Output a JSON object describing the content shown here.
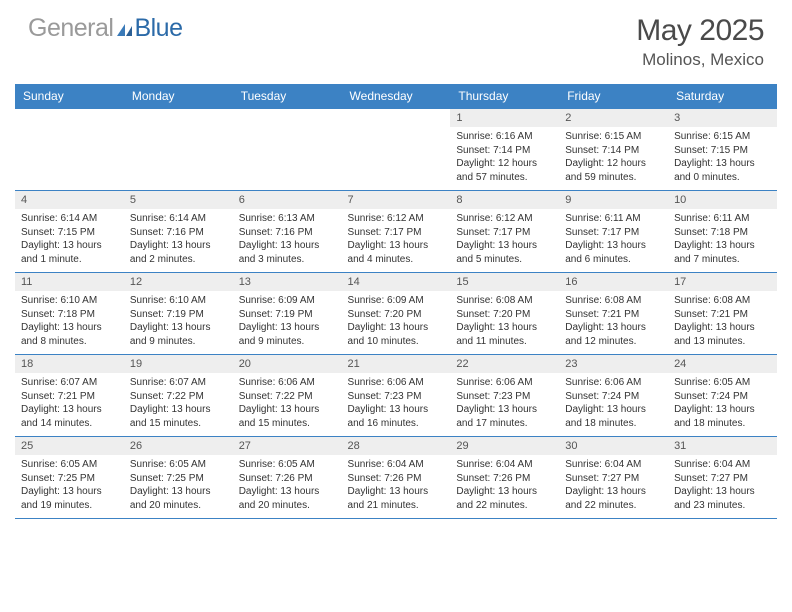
{
  "brand": {
    "part1": "General",
    "part2": "Blue"
  },
  "title": "May 2025",
  "location": "Molinos, Mexico",
  "colors": {
    "header_bg": "#3c82c4",
    "header_text": "#ffffff",
    "daynum_bg": "#eeeeee",
    "text": "#333333",
    "rule": "#3c82c4"
  },
  "daysOfWeek": [
    "Sunday",
    "Monday",
    "Tuesday",
    "Wednesday",
    "Thursday",
    "Friday",
    "Saturday"
  ],
  "weeks": [
    [
      {
        "n": "",
        "sunrise": "",
        "sunset": "",
        "daylight": ""
      },
      {
        "n": "",
        "sunrise": "",
        "sunset": "",
        "daylight": ""
      },
      {
        "n": "",
        "sunrise": "",
        "sunset": "",
        "daylight": ""
      },
      {
        "n": "",
        "sunrise": "",
        "sunset": "",
        "daylight": ""
      },
      {
        "n": "1",
        "sunrise": "Sunrise: 6:16 AM",
        "sunset": "Sunset: 7:14 PM",
        "daylight": "Daylight: 12 hours and 57 minutes."
      },
      {
        "n": "2",
        "sunrise": "Sunrise: 6:15 AM",
        "sunset": "Sunset: 7:14 PM",
        "daylight": "Daylight: 12 hours and 59 minutes."
      },
      {
        "n": "3",
        "sunrise": "Sunrise: 6:15 AM",
        "sunset": "Sunset: 7:15 PM",
        "daylight": "Daylight: 13 hours and 0 minutes."
      }
    ],
    [
      {
        "n": "4",
        "sunrise": "Sunrise: 6:14 AM",
        "sunset": "Sunset: 7:15 PM",
        "daylight": "Daylight: 13 hours and 1 minute."
      },
      {
        "n": "5",
        "sunrise": "Sunrise: 6:14 AM",
        "sunset": "Sunset: 7:16 PM",
        "daylight": "Daylight: 13 hours and 2 minutes."
      },
      {
        "n": "6",
        "sunrise": "Sunrise: 6:13 AM",
        "sunset": "Sunset: 7:16 PM",
        "daylight": "Daylight: 13 hours and 3 minutes."
      },
      {
        "n": "7",
        "sunrise": "Sunrise: 6:12 AM",
        "sunset": "Sunset: 7:17 PM",
        "daylight": "Daylight: 13 hours and 4 minutes."
      },
      {
        "n": "8",
        "sunrise": "Sunrise: 6:12 AM",
        "sunset": "Sunset: 7:17 PM",
        "daylight": "Daylight: 13 hours and 5 minutes."
      },
      {
        "n": "9",
        "sunrise": "Sunrise: 6:11 AM",
        "sunset": "Sunset: 7:17 PM",
        "daylight": "Daylight: 13 hours and 6 minutes."
      },
      {
        "n": "10",
        "sunrise": "Sunrise: 6:11 AM",
        "sunset": "Sunset: 7:18 PM",
        "daylight": "Daylight: 13 hours and 7 minutes."
      }
    ],
    [
      {
        "n": "11",
        "sunrise": "Sunrise: 6:10 AM",
        "sunset": "Sunset: 7:18 PM",
        "daylight": "Daylight: 13 hours and 8 minutes."
      },
      {
        "n": "12",
        "sunrise": "Sunrise: 6:10 AM",
        "sunset": "Sunset: 7:19 PM",
        "daylight": "Daylight: 13 hours and 9 minutes."
      },
      {
        "n": "13",
        "sunrise": "Sunrise: 6:09 AM",
        "sunset": "Sunset: 7:19 PM",
        "daylight": "Daylight: 13 hours and 9 minutes."
      },
      {
        "n": "14",
        "sunrise": "Sunrise: 6:09 AM",
        "sunset": "Sunset: 7:20 PM",
        "daylight": "Daylight: 13 hours and 10 minutes."
      },
      {
        "n": "15",
        "sunrise": "Sunrise: 6:08 AM",
        "sunset": "Sunset: 7:20 PM",
        "daylight": "Daylight: 13 hours and 11 minutes."
      },
      {
        "n": "16",
        "sunrise": "Sunrise: 6:08 AM",
        "sunset": "Sunset: 7:21 PM",
        "daylight": "Daylight: 13 hours and 12 minutes."
      },
      {
        "n": "17",
        "sunrise": "Sunrise: 6:08 AM",
        "sunset": "Sunset: 7:21 PM",
        "daylight": "Daylight: 13 hours and 13 minutes."
      }
    ],
    [
      {
        "n": "18",
        "sunrise": "Sunrise: 6:07 AM",
        "sunset": "Sunset: 7:21 PM",
        "daylight": "Daylight: 13 hours and 14 minutes."
      },
      {
        "n": "19",
        "sunrise": "Sunrise: 6:07 AM",
        "sunset": "Sunset: 7:22 PM",
        "daylight": "Daylight: 13 hours and 15 minutes."
      },
      {
        "n": "20",
        "sunrise": "Sunrise: 6:06 AM",
        "sunset": "Sunset: 7:22 PM",
        "daylight": "Daylight: 13 hours and 15 minutes."
      },
      {
        "n": "21",
        "sunrise": "Sunrise: 6:06 AM",
        "sunset": "Sunset: 7:23 PM",
        "daylight": "Daylight: 13 hours and 16 minutes."
      },
      {
        "n": "22",
        "sunrise": "Sunrise: 6:06 AM",
        "sunset": "Sunset: 7:23 PM",
        "daylight": "Daylight: 13 hours and 17 minutes."
      },
      {
        "n": "23",
        "sunrise": "Sunrise: 6:06 AM",
        "sunset": "Sunset: 7:24 PM",
        "daylight": "Daylight: 13 hours and 18 minutes."
      },
      {
        "n": "24",
        "sunrise": "Sunrise: 6:05 AM",
        "sunset": "Sunset: 7:24 PM",
        "daylight": "Daylight: 13 hours and 18 minutes."
      }
    ],
    [
      {
        "n": "25",
        "sunrise": "Sunrise: 6:05 AM",
        "sunset": "Sunset: 7:25 PM",
        "daylight": "Daylight: 13 hours and 19 minutes."
      },
      {
        "n": "26",
        "sunrise": "Sunrise: 6:05 AM",
        "sunset": "Sunset: 7:25 PM",
        "daylight": "Daylight: 13 hours and 20 minutes."
      },
      {
        "n": "27",
        "sunrise": "Sunrise: 6:05 AM",
        "sunset": "Sunset: 7:26 PM",
        "daylight": "Daylight: 13 hours and 20 minutes."
      },
      {
        "n": "28",
        "sunrise": "Sunrise: 6:04 AM",
        "sunset": "Sunset: 7:26 PM",
        "daylight": "Daylight: 13 hours and 21 minutes."
      },
      {
        "n": "29",
        "sunrise": "Sunrise: 6:04 AM",
        "sunset": "Sunset: 7:26 PM",
        "daylight": "Daylight: 13 hours and 22 minutes."
      },
      {
        "n": "30",
        "sunrise": "Sunrise: 6:04 AM",
        "sunset": "Sunset: 7:27 PM",
        "daylight": "Daylight: 13 hours and 22 minutes."
      },
      {
        "n": "31",
        "sunrise": "Sunrise: 6:04 AM",
        "sunset": "Sunset: 7:27 PM",
        "daylight": "Daylight: 13 hours and 23 minutes."
      }
    ]
  ]
}
